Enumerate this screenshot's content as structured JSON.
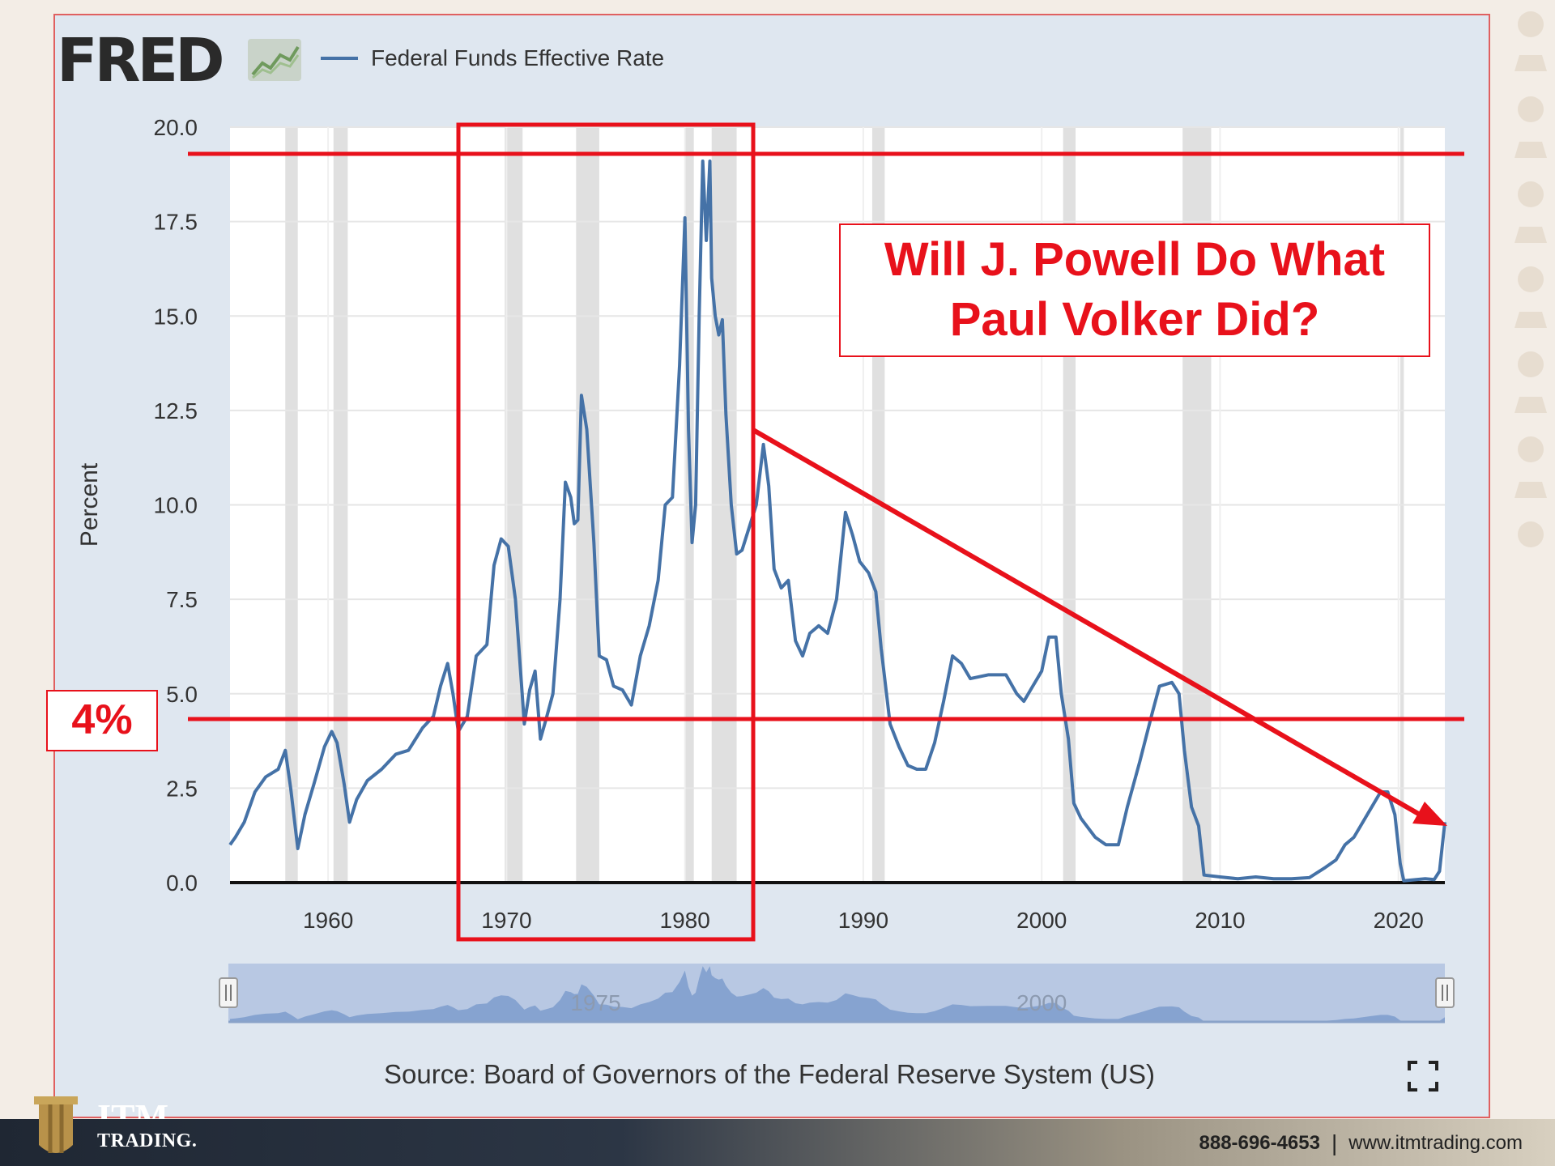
{
  "brand": {
    "logo_text": "FRED",
    "footer_brand_top": "ITM",
    "footer_brand": "TRADING.",
    "phone": "888-696-4653",
    "separator": "|",
    "website": "www.itmtrading.com"
  },
  "colors": {
    "series": "#4572a7",
    "annotation": "#e8111b",
    "recession_band": "#e0e0e0",
    "plot_bg": "#ffffff",
    "frame_bg": "#dfe7f0"
  },
  "source_note": "Source: Board of Governors of the Federal Reserve System (US)",
  "icons": {
    "expand": "fullscreen-expand-icon",
    "fred_logo": "line-chart-icon",
    "navigator_handles": "grip-handle-icon"
  },
  "annotations": {
    "headline_line1": "Will J. Powell Do What",
    "headline_line2": "Paul Volker Did?",
    "level_label": "4%"
  },
  "navigator": {
    "labels": [
      "1975",
      "2000"
    ]
  },
  "chart_data": {
    "type": "line",
    "title": "",
    "xlabel": "",
    "ylabel": "Percent",
    "xlim": [
      1954.5,
      2022.6
    ],
    "ylim": [
      0,
      20
    ],
    "grid": true,
    "legend_position": "top-left",
    "x_ticks": [
      "1960",
      "1970",
      "1980",
      "1990",
      "2000",
      "2010",
      "2020"
    ],
    "y_ticks": [
      "0.0",
      "2.5",
      "5.0",
      "7.5",
      "10.0",
      "12.5",
      "15.0",
      "17.5",
      "20.0"
    ],
    "recessions": [
      [
        1957.6,
        1958.3
      ],
      [
        1960.3,
        1961.1
      ],
      [
        1969.9,
        1970.9
      ],
      [
        1973.9,
        1975.2
      ],
      [
        1980.0,
        1980.5
      ],
      [
        1981.5,
        1982.9
      ],
      [
        1990.5,
        1991.2
      ],
      [
        2001.2,
        2001.9
      ],
      [
        2007.9,
        2009.5
      ],
      [
        2020.1,
        2020.3
      ]
    ],
    "series": [
      {
        "name": "Federal Funds Effective Rate",
        "x": [
          1954.5,
          1954.8,
          1955.3,
          1955.9,
          1956.5,
          1957.2,
          1957.6,
          1957.9,
          1958.3,
          1958.7,
          1959.2,
          1959.8,
          1960.2,
          1960.5,
          1960.9,
          1961.2,
          1961.6,
          1962.2,
          1963.0,
          1963.8,
          1964.5,
          1965.3,
          1965.9,
          1966.3,
          1966.7,
          1967.0,
          1967.3,
          1967.8,
          1968.3,
          1968.9,
          1969.3,
          1969.7,
          1970.1,
          1970.5,
          1971.0,
          1971.3,
          1971.6,
          1971.9,
          1972.2,
          1972.6,
          1973.0,
          1973.3,
          1973.6,
          1973.8,
          1974.0,
          1974.2,
          1974.5,
          1974.9,
          1975.2,
          1975.6,
          1976.0,
          1976.5,
          1977.0,
          1977.5,
          1978.0,
          1978.5,
          1978.9,
          1979.3,
          1979.7,
          1980.0,
          1980.2,
          1980.4,
          1980.6,
          1980.8,
          1981.0,
          1981.2,
          1981.4,
          1981.5,
          1981.7,
          1981.9,
          1982.1,
          1982.3,
          1982.6,
          1982.9,
          1983.2,
          1983.6,
          1984.0,
          1984.4,
          1984.7,
          1985.0,
          1985.4,
          1985.8,
          1986.2,
          1986.6,
          1987.0,
          1987.5,
          1988.0,
          1988.5,
          1989.0,
          1989.4,
          1989.8,
          1990.3,
          1990.7,
          1991.0,
          1991.5,
          1992.0,
          1992.5,
          1993.0,
          1993.5,
          1994.0,
          1994.5,
          1995.0,
          1995.5,
          1996.0,
          1997.0,
          1998.0,
          1998.6,
          1999.0,
          1999.5,
          2000.0,
          2000.4,
          2000.8,
          2001.1,
          2001.5,
          2001.8,
          2002.2,
          2003.0,
          2003.6,
          2004.3,
          2004.8,
          2005.5,
          2006.2,
          2006.6,
          2007.3,
          2007.7,
          2008.0,
          2008.4,
          2008.8,
          2009.1,
          2010.0,
          2011.0,
          2012.0,
          2013.0,
          2014.0,
          2015.0,
          2015.9,
          2016.5,
          2017.0,
          2017.5,
          2018.0,
          2018.5,
          2019.0,
          2019.4,
          2019.8,
          2020.1,
          2020.3,
          2021.0,
          2021.5,
          2022.0,
          2022.3,
          2022.6
        ],
        "y": [
          1.0,
          1.2,
          1.6,
          2.4,
          2.8,
          3.0,
          3.5,
          2.5,
          0.9,
          1.8,
          2.6,
          3.6,
          4.0,
          3.7,
          2.6,
          1.6,
          2.2,
          2.7,
          3.0,
          3.4,
          3.5,
          4.1,
          4.4,
          5.2,
          5.8,
          5.0,
          4.0,
          4.4,
          6.0,
          6.3,
          8.4,
          9.1,
          8.9,
          7.5,
          4.2,
          5.1,
          5.6,
          3.8,
          4.3,
          5.0,
          7.5,
          10.6,
          10.2,
          9.5,
          9.6,
          12.9,
          12.0,
          9.0,
          6.0,
          5.9,
          5.2,
          5.1,
          4.7,
          6.0,
          6.8,
          8.0,
          10.0,
          10.2,
          13.7,
          17.6,
          12.0,
          9.0,
          10.0,
          15.0,
          19.1,
          17.0,
          19.1,
          16.0,
          15.0,
          14.5,
          14.9,
          12.4,
          10.0,
          8.7,
          8.8,
          9.4,
          10.0,
          11.6,
          10.5,
          8.3,
          7.8,
          8.0,
          6.4,
          6.0,
          6.6,
          6.8,
          6.6,
          7.5,
          9.8,
          9.2,
          8.5,
          8.2,
          7.7,
          6.2,
          4.2,
          3.6,
          3.1,
          3.0,
          3.0,
          3.7,
          4.8,
          6.0,
          5.8,
          5.4,
          5.5,
          5.5,
          5.0,
          4.8,
          5.2,
          5.6,
          6.5,
          6.5,
          5.0,
          3.8,
          2.1,
          1.7,
          1.2,
          1.0,
          1.0,
          2.0,
          3.2,
          4.5,
          5.2,
          5.3,
          5.0,
          3.5,
          2.0,
          1.5,
          0.2,
          0.15,
          0.1,
          0.15,
          0.1,
          0.1,
          0.13,
          0.4,
          0.6,
          1.0,
          1.2,
          1.6,
          2.0,
          2.4,
          2.4,
          1.8,
          0.5,
          0.05,
          0.08,
          0.1,
          0.08,
          0.3,
          1.6
        ]
      }
    ]
  }
}
